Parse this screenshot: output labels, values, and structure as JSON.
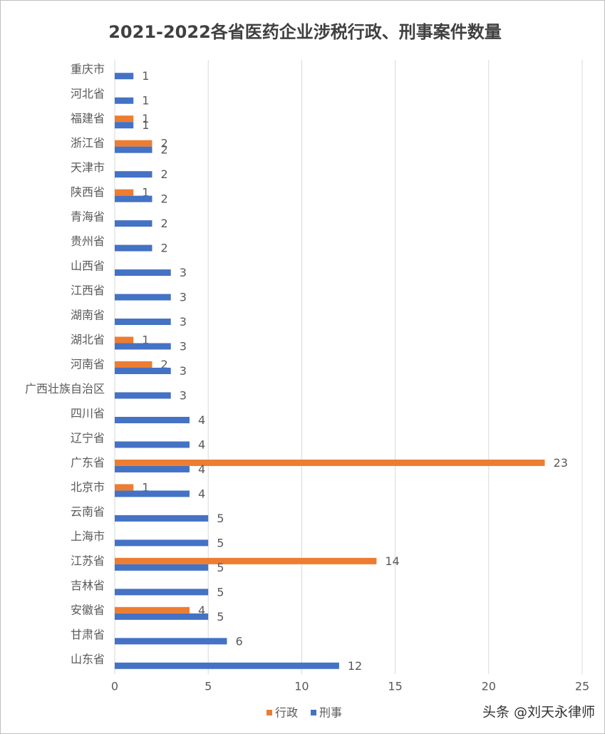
{
  "chart_data": {
    "type": "hbar",
    "title": "2021-2022各省医药企业涉税行政、刑事案件数量",
    "categories": [
      "重庆市",
      "河北省",
      "福建省",
      "浙江省",
      "天津市",
      "陕西省",
      "青海省",
      "贵州省",
      "山西省",
      "江西省",
      "湖南省",
      "湖北省",
      "河南省",
      "广西壮族自治区",
      "四川省",
      "辽宁省",
      "广东省",
      "北京市",
      "云南省",
      "上海市",
      "江苏省",
      "吉林省",
      "安徽省",
      "甘肃省",
      "山东省"
    ],
    "series": [
      {
        "name": "行政",
        "color": "#ed7d31",
        "values": [
          null,
          null,
          1,
          2,
          null,
          1,
          null,
          null,
          null,
          null,
          null,
          1,
          2,
          null,
          null,
          null,
          23,
          1,
          null,
          null,
          14,
          null,
          4,
          null,
          null
        ]
      },
      {
        "name": "刑事",
        "color": "#4472c4",
        "values": [
          1,
          1,
          1,
          2,
          2,
          2,
          2,
          2,
          3,
          3,
          3,
          3,
          3,
          3,
          4,
          4,
          4,
          4,
          5,
          5,
          5,
          5,
          5,
          6,
          12
        ]
      }
    ],
    "xlim": [
      0,
      25
    ],
    "xticks": [
      0,
      5,
      10,
      15,
      20,
      25
    ],
    "grid": true,
    "legend": "bottom",
    "watermark": "头条 @刘天永律师"
  }
}
